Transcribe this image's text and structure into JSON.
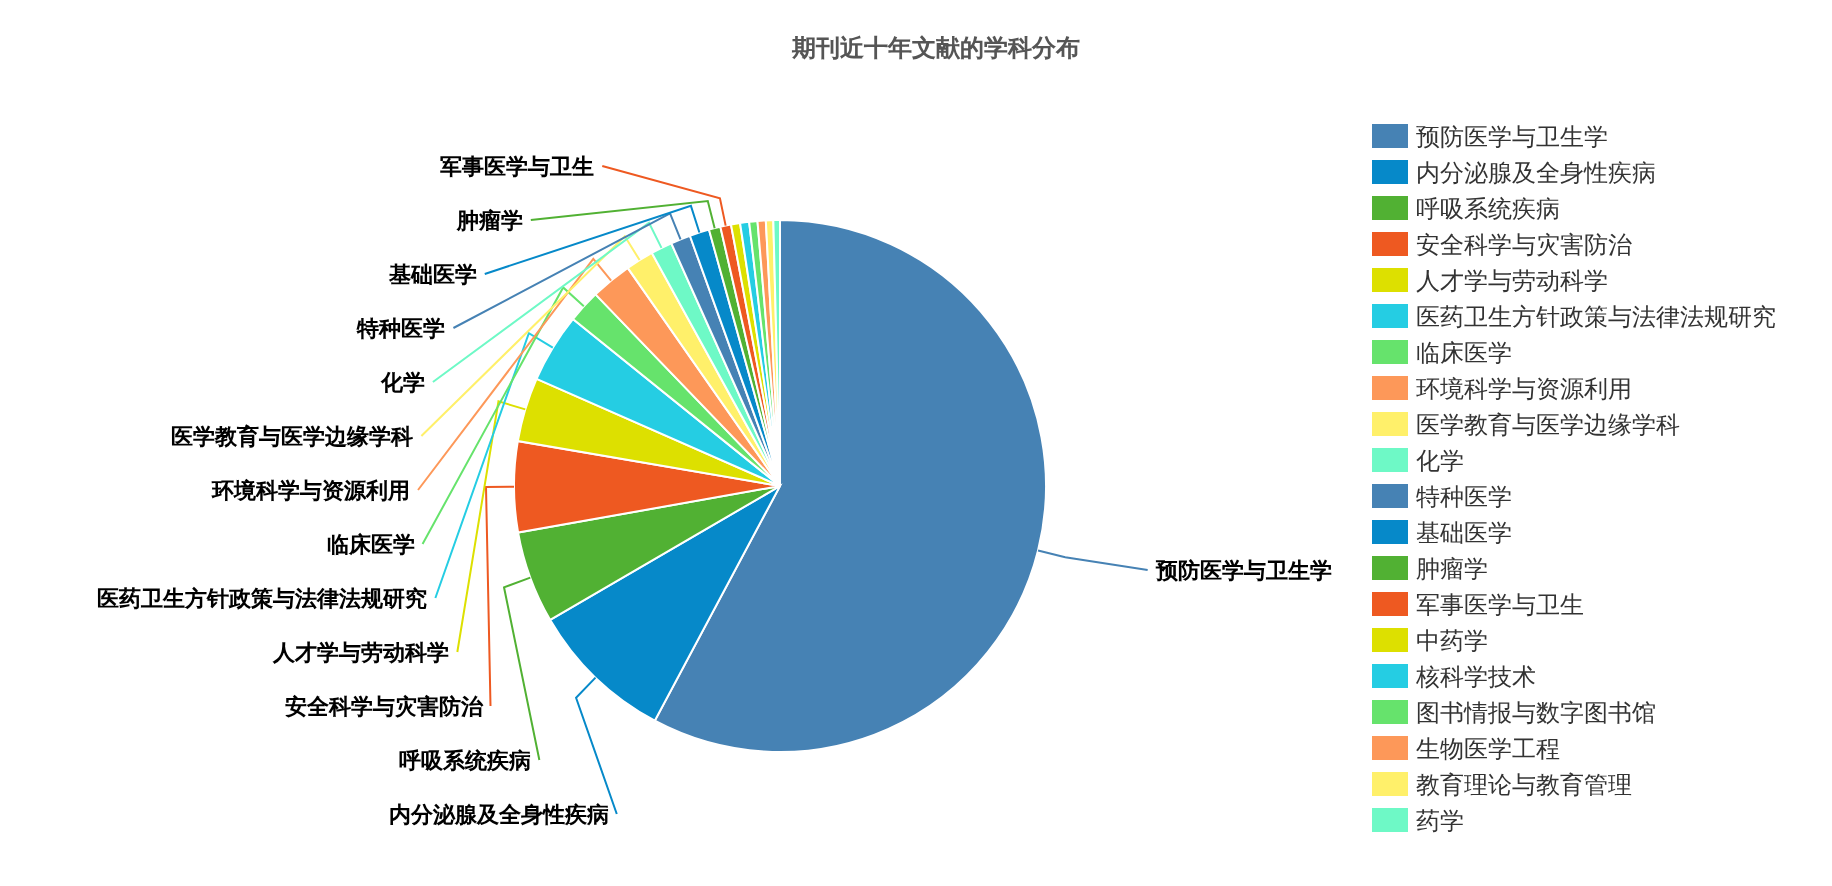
{
  "chart_data": {
    "type": "pie",
    "title": "期刊近十年文献的学科分布",
    "categories": [
      "预防医学与卫生学",
      "内分泌腺及全身性疾病",
      "呼吸系统疾病",
      "安全科学与灾害防治",
      "人才学与劳动科学",
      "医药卫生方针政策与法律法规研究",
      "临床医学",
      "环境科学与资源利用",
      "医学教育与医学边缘学科",
      "化学",
      "特种医学",
      "基础医学",
      "肿瘤学",
      "军事医学与卫生",
      "中药学",
      "核科学技术",
      "图书情报与数字图书馆",
      "生物医学工程",
      "教育理论与教育管理",
      "药学"
    ],
    "values": [
      57.8,
      8.8,
      5.6,
      5.5,
      3.9,
      4.2,
      2.0,
      2.5,
      1.7,
      1.3,
      1.2,
      1.2,
      0.7,
      0.65,
      0.55,
      0.55,
      0.5,
      0.5,
      0.45,
      0.4
    ],
    "colors": [
      "#4682b4",
      "#0689c9",
      "#51b133",
      "#ee5921",
      "#dde000",
      "#25cde3",
      "#66e36c",
      "#fd9859",
      "#fff06a",
      "#6ef9c6",
      "#4682b4",
      "#0689c9",
      "#51b133",
      "#ee5921",
      "#dde000",
      "#25cde3",
      "#66e36c",
      "#fd9859",
      "#fff06a",
      "#6ef9c6"
    ],
    "legend": "right"
  }
}
